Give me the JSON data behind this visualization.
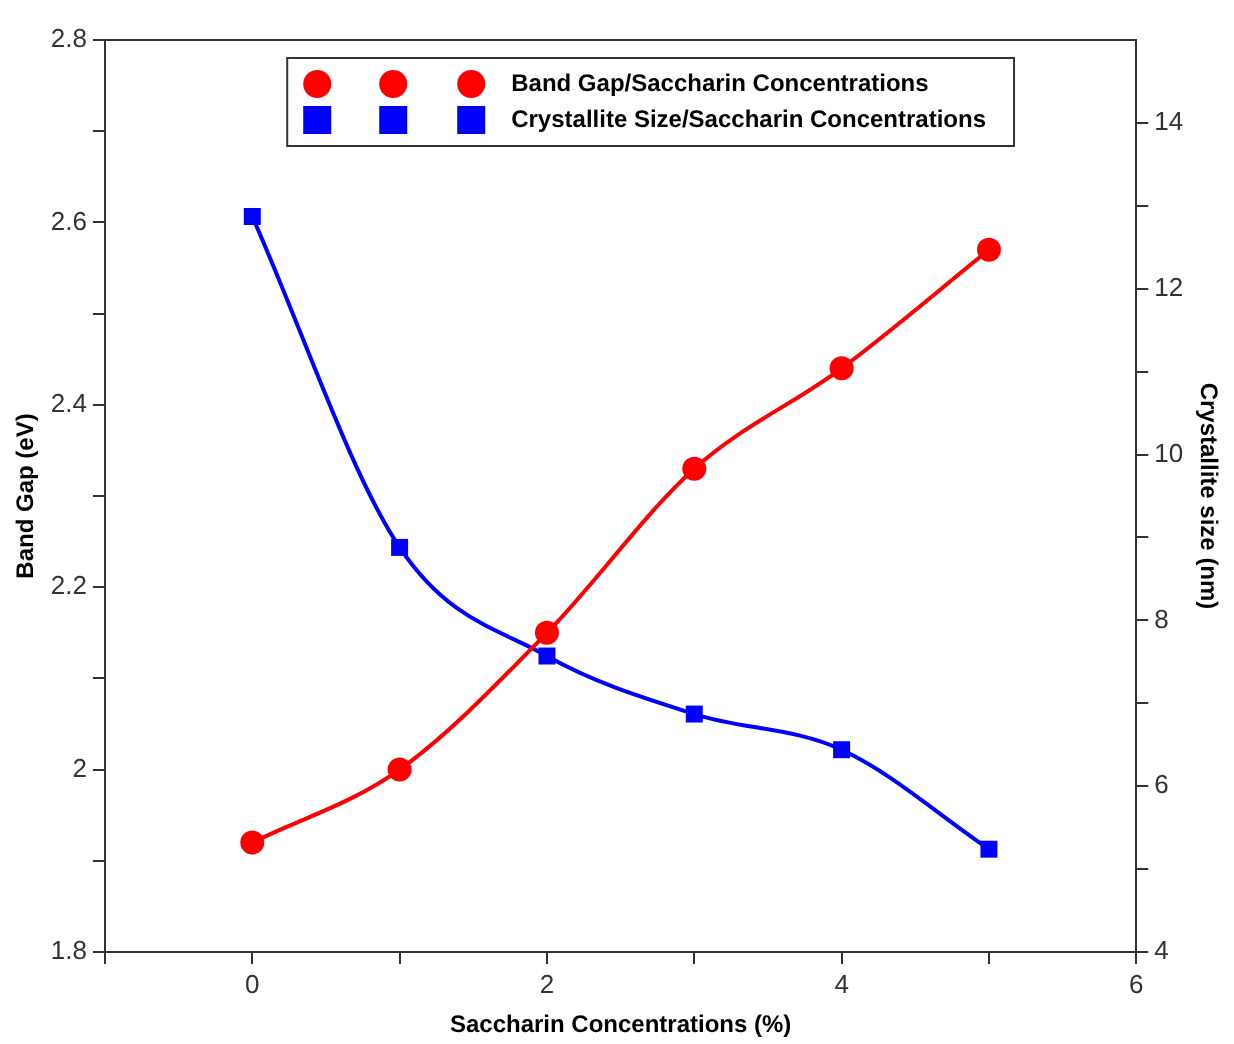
{
  "chart_data": {
    "type": "line",
    "xlabel": "Saccharin Concentrations (%)",
    "ylabel": "Band Gap (eV)",
    "y2label": "Crystallite size (nm)",
    "x": [
      0,
      1,
      2,
      3,
      4,
      5
    ],
    "series": [
      {
        "name": "Band Gap/Saccharin Concentrations",
        "color": "#ff0000",
        "marker": "circle",
        "values": [
          1.92,
          2.0,
          2.15,
          2.33,
          2.44,
          2.57
        ]
      },
      {
        "name": "Crystallite Size/Saccharin Concentrations",
        "color": "#0000ff",
        "marker": "square",
        "axis": "y2",
        "values": [
          12.87,
          8.88,
          7.57,
          6.87,
          6.44,
          5.24
        ]
      }
    ],
    "xlim": [
      -1,
      6
    ],
    "xticks": [
      {
        "value": -1,
        "label": null
      },
      0,
      {
        "value": 1,
        "label": null
      },
      2,
      {
        "value": 3,
        "label": null
      },
      4,
      {
        "value": 5,
        "label": null
      },
      6
    ],
    "ylim": [
      1.8,
      2.8
    ],
    "yticks": [
      1.8,
      {
        "value": 1.9,
        "label": null
      },
      2,
      {
        "value": 2.1,
        "label": null
      },
      2.2,
      {
        "value": 2.3,
        "label": null
      },
      2.4,
      {
        "value": 2.5,
        "label": null
      },
      2.6,
      {
        "value": 2.7,
        "label": null
      },
      2.8
    ],
    "y2lim": [
      4,
      15
    ],
    "y2ticks": [
      4,
      {
        "value": 5,
        "label": null
      },
      6,
      {
        "value": 7,
        "label": null
      },
      8,
      {
        "value": 9,
        "label": null
      },
      10,
      {
        "value": 11,
        "label": null
      },
      12,
      {
        "value": 13,
        "label": null
      },
      14
    ],
    "grid": false,
    "legend": "top",
    "line_style": "solid"
  }
}
